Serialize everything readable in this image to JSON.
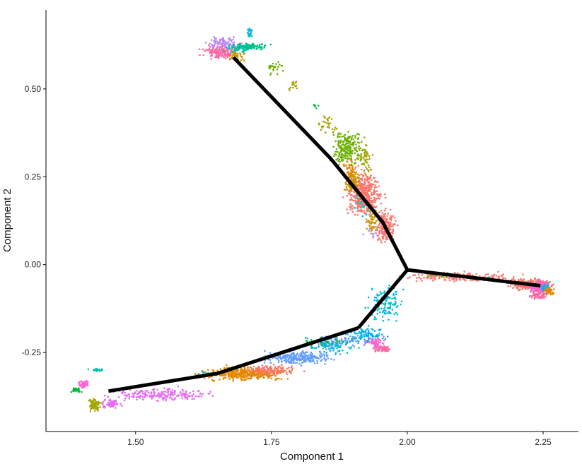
{
  "chart_data": {
    "type": "scatter",
    "title": "",
    "xlabel": "Component 1",
    "ylabel": "Component 2",
    "xlim": [
      1.335,
      2.315
    ],
    "ylim": [
      -0.475,
      0.725
    ],
    "xticks": [
      {
        "value": 1.5,
        "label": "1.50"
      },
      {
        "value": 1.75,
        "label": "1.75"
      },
      {
        "value": 2.0,
        "label": "2.00"
      },
      {
        "value": 2.25,
        "label": "2.25"
      }
    ],
    "yticks": [
      {
        "value": -0.25,
        "label": "-0.25"
      },
      {
        "value": 0.0,
        "label": "0.00"
      },
      {
        "value": 0.25,
        "label": "0.25"
      },
      {
        "value": 0.5,
        "label": "0.50"
      }
    ],
    "grid": false,
    "legend": "none",
    "palette": [
      "#F8766D",
      "#E58700",
      "#C99800",
      "#A3A500",
      "#6BB100",
      "#00BA38",
      "#00BF7D",
      "#00C0AF",
      "#00BCD8",
      "#00B0F6",
      "#619CFF",
      "#B983FF",
      "#E76BF3",
      "#FD61D1",
      "#FF67A4"
    ],
    "trajectory_color": "#000000",
    "trajectory": [
      [
        [
          1.68,
          0.59
        ],
        [
          1.86,
          0.3
        ],
        [
          1.955,
          0.12
        ],
        [
          2.0,
          -0.015
        ]
      ],
      [
        [
          2.0,
          -0.015
        ],
        [
          2.245,
          -0.06
        ]
      ],
      [
        [
          2.0,
          -0.015
        ],
        [
          1.91,
          -0.18
        ]
      ],
      [
        [
          1.91,
          -0.18
        ],
        [
          1.65,
          -0.31
        ],
        [
          1.45,
          -0.36
        ]
      ]
    ],
    "clusters": [
      {
        "color": "#FF67A4",
        "x": 1.655,
        "y": 0.605,
        "sx": 0.02,
        "sy": 0.012,
        "n": 150
      },
      {
        "color": "#B983FF",
        "x": 1.665,
        "y": 0.63,
        "sx": 0.02,
        "sy": 0.01,
        "n": 80
      },
      {
        "color": "#C99800",
        "x": 1.685,
        "y": 0.595,
        "sx": 0.01,
        "sy": 0.01,
        "n": 40
      },
      {
        "color": "#00BF7D",
        "x": 1.705,
        "y": 0.62,
        "sx": 0.025,
        "sy": 0.006,
        "n": 80
      },
      {
        "color": "#00C0AF",
        "x": 1.695,
        "y": 0.615,
        "sx": 0.02,
        "sy": 0.008,
        "n": 40
      },
      {
        "color": "#00BCD8",
        "x": 1.71,
        "y": 0.66,
        "sx": 0.004,
        "sy": 0.01,
        "n": 25
      },
      {
        "color": "#6BB100",
        "x": 1.755,
        "y": 0.56,
        "sx": 0.01,
        "sy": 0.012,
        "n": 25
      },
      {
        "color": "#A3A500",
        "x": 1.79,
        "y": 0.51,
        "sx": 0.008,
        "sy": 0.012,
        "n": 15
      },
      {
        "color": "#00BA38",
        "x": 1.83,
        "y": 0.45,
        "sx": 0.004,
        "sy": 0.008,
        "n": 6
      },
      {
        "color": "#A3A500",
        "x": 1.855,
        "y": 0.4,
        "sx": 0.01,
        "sy": 0.02,
        "n": 30
      },
      {
        "color": "#6BB100",
        "x": 1.89,
        "y": 0.33,
        "sx": 0.018,
        "sy": 0.035,
        "n": 200
      },
      {
        "color": "#A3A500",
        "x": 1.92,
        "y": 0.3,
        "sx": 0.012,
        "sy": 0.03,
        "n": 60
      },
      {
        "color": "#F8766D",
        "x": 1.92,
        "y": 0.2,
        "sx": 0.02,
        "sy": 0.04,
        "n": 450
      },
      {
        "color": "#F8766D",
        "x": 1.96,
        "y": 0.11,
        "sx": 0.012,
        "sy": 0.03,
        "n": 200
      },
      {
        "color": "#E58700",
        "x": 1.895,
        "y": 0.26,
        "sx": 0.008,
        "sy": 0.025,
        "n": 80
      },
      {
        "color": "#C99800",
        "x": 1.9,
        "y": 0.23,
        "sx": 0.008,
        "sy": 0.02,
        "n": 70
      },
      {
        "color": "#C99800",
        "x": 1.935,
        "y": 0.12,
        "sx": 0.008,
        "sy": 0.022,
        "n": 50
      },
      {
        "color": "#00BCD8",
        "x": 1.92,
        "y": 0.17,
        "sx": 0.01,
        "sy": 0.02,
        "n": 20
      },
      {
        "color": "#B983FF",
        "x": 1.935,
        "y": 0.09,
        "sx": 0.01,
        "sy": 0.01,
        "n": 10
      },
      {
        "color": "#F8766D",
        "x": 2.1,
        "y": -0.035,
        "sx": 0.06,
        "sy": 0.008,
        "n": 200
      },
      {
        "color": "#F8766D",
        "x": 2.225,
        "y": -0.055,
        "sx": 0.025,
        "sy": 0.01,
        "n": 300
      },
      {
        "color": "#FD61D1",
        "x": 2.245,
        "y": -0.065,
        "sx": 0.012,
        "sy": 0.012,
        "n": 150
      },
      {
        "color": "#00B0F6",
        "x": 2.255,
        "y": -0.07,
        "sx": 0.006,
        "sy": 0.01,
        "n": 40
      },
      {
        "color": "#E58700",
        "x": 2.26,
        "y": -0.075,
        "sx": 0.006,
        "sy": 0.008,
        "n": 40
      },
      {
        "color": "#FF67A4",
        "x": 2.24,
        "y": -0.085,
        "sx": 0.01,
        "sy": 0.008,
        "n": 60
      },
      {
        "color": "#6BB100",
        "x": 2.06,
        "y": -0.03,
        "sx": 0.02,
        "sy": 0.005,
        "n": 15
      },
      {
        "color": "#00BA38",
        "x": 2.13,
        "y": -0.04,
        "sx": 0.02,
        "sy": 0.005,
        "n": 10
      },
      {
        "color": "#00BCD8",
        "x": 1.96,
        "y": -0.11,
        "sx": 0.02,
        "sy": 0.035,
        "n": 120
      },
      {
        "color": "#00B0F6",
        "x": 1.925,
        "y": -0.2,
        "sx": 0.02,
        "sy": 0.015,
        "n": 100
      },
      {
        "color": "#FF67A4",
        "x": 1.955,
        "y": -0.24,
        "sx": 0.012,
        "sy": 0.006,
        "n": 60
      },
      {
        "color": "#FD61D1",
        "x": 1.94,
        "y": -0.22,
        "sx": 0.015,
        "sy": 0.01,
        "n": 50
      },
      {
        "color": "#619CFF",
        "x": 1.8,
        "y": -0.265,
        "sx": 0.04,
        "sy": 0.012,
        "n": 250
      },
      {
        "color": "#619CFF",
        "x": 1.87,
        "y": -0.22,
        "sx": 0.03,
        "sy": 0.012,
        "n": 100
      },
      {
        "color": "#00BA38",
        "x": 1.85,
        "y": -0.22,
        "sx": 0.03,
        "sy": 0.01,
        "n": 40
      },
      {
        "color": "#00BCD8",
        "x": 1.86,
        "y": -0.235,
        "sx": 0.03,
        "sy": 0.01,
        "n": 50
      },
      {
        "color": "#E58700",
        "x": 1.7,
        "y": -0.31,
        "sx": 0.05,
        "sy": 0.012,
        "n": 400
      },
      {
        "color": "#F8766D",
        "x": 1.75,
        "y": -0.3,
        "sx": 0.03,
        "sy": 0.01,
        "n": 120
      },
      {
        "color": "#E76BF3",
        "x": 1.55,
        "y": -0.37,
        "sx": 0.06,
        "sy": 0.012,
        "n": 200
      },
      {
        "color": "#E76BF3",
        "x": 1.455,
        "y": -0.395,
        "sx": 0.012,
        "sy": 0.01,
        "n": 60
      },
      {
        "color": "#A3A500",
        "x": 1.425,
        "y": -0.4,
        "sx": 0.007,
        "sy": 0.012,
        "n": 80
      },
      {
        "color": "#FD61D1",
        "x": 1.405,
        "y": -0.34,
        "sx": 0.007,
        "sy": 0.007,
        "n": 40
      },
      {
        "color": "#00BA38",
        "x": 1.39,
        "y": -0.357,
        "sx": 0.006,
        "sy": 0.004,
        "n": 30
      },
      {
        "color": "#00C0AF",
        "x": 1.43,
        "y": -0.3,
        "sx": 0.008,
        "sy": 0.002,
        "n": 20
      },
      {
        "color": "#00BCD8",
        "x": 1.63,
        "y": -0.31,
        "sx": 0.01,
        "sy": 0.004,
        "n": 10
      }
    ]
  }
}
